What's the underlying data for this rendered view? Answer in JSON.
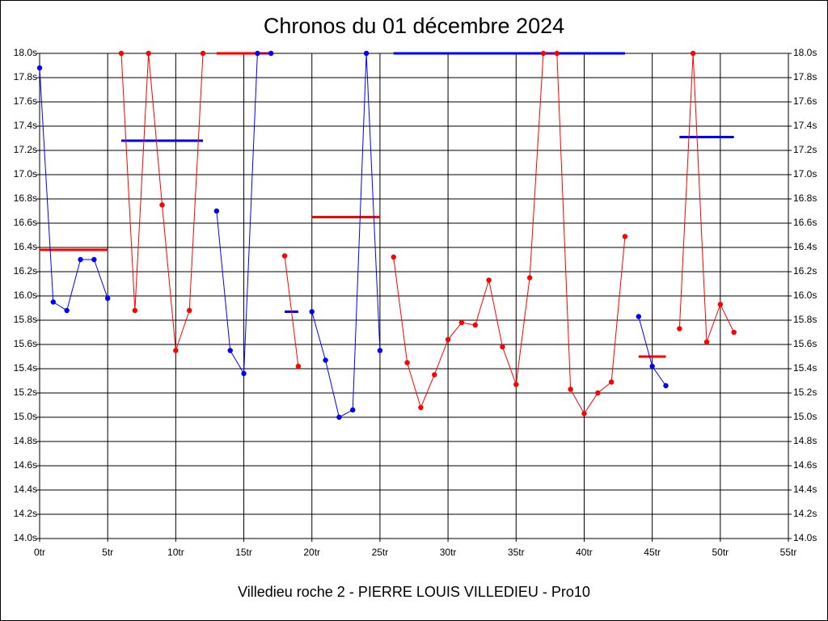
{
  "chart_data": {
    "type": "line",
    "title": "Chronos du 01 décembre 2024",
    "x_label": "Villedieu roche 2 - PIERRE LOUIS VILLEDIEU - Pro10",
    "x": [
      0,
      1,
      2,
      3,
      4,
      5,
      6,
      7,
      8,
      9,
      10,
      11,
      12,
      13,
      14,
      15,
      16,
      17,
      18,
      19,
      20,
      21,
      22,
      23,
      24,
      25,
      26,
      27,
      28,
      29,
      30,
      31,
      32,
      33,
      34,
      35,
      36,
      37,
      38,
      39,
      40,
      41,
      42,
      43,
      44,
      45,
      46,
      47,
      48,
      49,
      50,
      51
    ],
    "series": [
      {
        "color": "#0000ff",
        "values": [
          17.88,
          15.95,
          15.88,
          16.3,
          16.3,
          15.98,
          null,
          null,
          null,
          null,
          null,
          null,
          null,
          16.7,
          15.55,
          15.36,
          18.0,
          18.0,
          null,
          null,
          15.87,
          15.47,
          15.0,
          15.06,
          18.0,
          15.55,
          null,
          null,
          null,
          null,
          null,
          null,
          null,
          null,
          null,
          null,
          null,
          null,
          null,
          null,
          null,
          null,
          null,
          null,
          15.83,
          15.42,
          15.26,
          null,
          null,
          null,
          null,
          null
        ]
      },
      {
        "color": "#ff0000",
        "values": [
          null,
          null,
          null,
          null,
          null,
          null,
          18.0,
          15.88,
          18.0,
          16.75,
          15.55,
          15.88,
          18.0,
          null,
          null,
          null,
          null,
          null,
          16.33,
          15.42,
          null,
          null,
          null,
          null,
          null,
          null,
          16.32,
          15.45,
          15.08,
          15.35,
          15.64,
          15.78,
          15.76,
          16.13,
          15.58,
          15.27,
          16.15,
          18.0,
          18.0,
          15.23,
          15.03,
          15.2,
          15.29,
          16.49,
          null,
          null,
          null,
          15.73,
          18.0,
          15.62,
          15.93,
          15.7
        ]
      }
    ],
    "averages": [
      {
        "color": "#ff0000",
        "x1": 0,
        "x2": 5,
        "y": 16.38
      },
      {
        "color": "#0000ff",
        "x1": 6,
        "x2": 12,
        "y": 17.28
      },
      {
        "color": "#ff0000",
        "x1": 13,
        "x2": 17,
        "y": 18.0
      },
      {
        "color": "#0000ff",
        "x1": 18,
        "x2": 19,
        "y": 15.87
      },
      {
        "color": "#ff0000",
        "x1": 20,
        "x2": 25,
        "y": 16.65
      },
      {
        "color": "#0000ff",
        "x1": 26,
        "x2": 43,
        "y": 18.0
      },
      {
        "color": "#ff0000",
        "x1": 44,
        "x2": 46,
        "y": 15.5
      },
      {
        "color": "#0000ff",
        "x1": 47,
        "x2": 51,
        "y": 17.31
      }
    ],
    "xlim": [
      0,
      55
    ],
    "ylim": [
      14.0,
      18.0
    ],
    "xticks": [
      {
        "value": 0,
        "label": "0tr"
      },
      {
        "value": 5,
        "label": "5tr"
      },
      {
        "value": 10,
        "label": "10tr"
      },
      {
        "value": 15,
        "label": "15tr"
      },
      {
        "value": 20,
        "label": "20tr"
      },
      {
        "value": 25,
        "label": "25tr"
      },
      {
        "value": 30,
        "label": "30tr"
      },
      {
        "value": 35,
        "label": "35tr"
      },
      {
        "value": 40,
        "label": "40tr"
      },
      {
        "value": 45,
        "label": "45tr"
      },
      {
        "value": 50,
        "label": "50tr"
      },
      {
        "value": 55,
        "label": "55tr"
      }
    ],
    "yticks": [
      {
        "value": 14.0,
        "label": "14.0s"
      },
      {
        "value": 14.2,
        "label": "14.2s"
      },
      {
        "value": 14.4,
        "label": "14.4s"
      },
      {
        "value": 14.6,
        "label": "14.6s"
      },
      {
        "value": 14.8,
        "label": "14.8s"
      },
      {
        "value": 15.0,
        "label": "15.0s"
      },
      {
        "value": 15.2,
        "label": "15.2s"
      },
      {
        "value": 15.4,
        "label": "15.4s"
      },
      {
        "value": 15.6,
        "label": "15.6s"
      },
      {
        "value": 15.8,
        "label": "15.8s"
      },
      {
        "value": 16.0,
        "label": "16.0s"
      },
      {
        "value": 16.2,
        "label": "16.2s"
      },
      {
        "value": 16.4,
        "label": "16.4s"
      },
      {
        "value": 16.6,
        "label": "16.6s"
      },
      {
        "value": 16.8,
        "label": "16.8s"
      },
      {
        "value": 17.0,
        "label": "17.0s"
      },
      {
        "value": 17.2,
        "label": "17.2s"
      },
      {
        "value": 17.4,
        "label": "17.4s"
      },
      {
        "value": 17.6,
        "label": "17.6s"
      },
      {
        "value": 17.8,
        "label": "17.8s"
      },
      {
        "value": 18.0,
        "label": "18.0s"
      }
    ],
    "grid": true
  }
}
